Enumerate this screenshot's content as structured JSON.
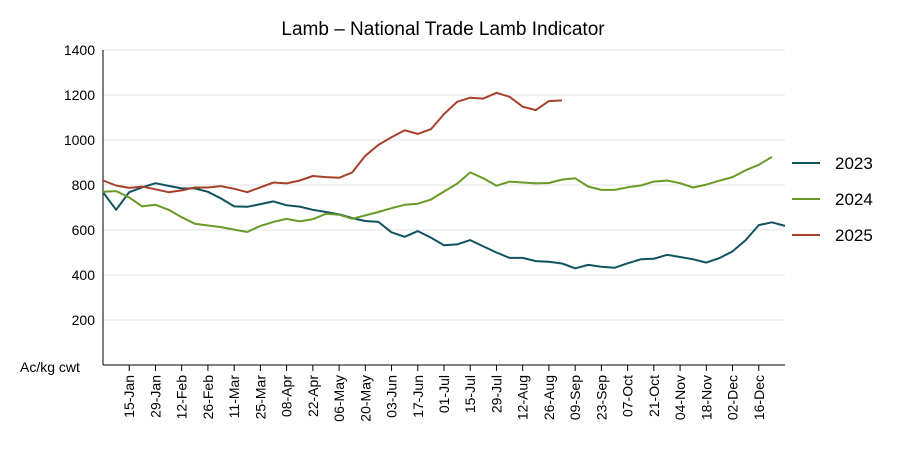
{
  "chart_data": {
    "type": "line",
    "title": "Lamb – National Trade Lamb Indicator",
    "ylabel": "Ac/kg cwt",
    "xlabel": "",
    "ylim": [
      0,
      1400
    ],
    "yticks": [
      200,
      400,
      600,
      800,
      1000,
      1200,
      1400
    ],
    "grid": "horizontal",
    "legend": "right",
    "x_tick_labels": [
      "15-Jan",
      "29-Jan",
      "12-Feb",
      "26-Feb",
      "11-Mar",
      "25-Mar",
      "08-Apr",
      "22-Apr",
      "06-May",
      "20-May",
      "03-Jun",
      "17-Jun",
      "01-Jul",
      "15-Jul",
      "29-Jul",
      "12-Aug",
      "26-Aug",
      "09-Sep",
      "23-Sep",
      "07-Oct",
      "21-Oct",
      "04-Nov",
      "18-Nov",
      "02-Dec",
      "16-Dec"
    ],
    "x_start": "01-Jan",
    "x_step_days": 7,
    "series": [
      {
        "name": "2023",
        "color": "#10525e",
        "values": [
          768,
          690,
          768,
          790,
          808,
          796,
          785,
          785,
          770,
          740,
          705,
          703,
          715,
          727,
          710,
          704,
          690,
          680,
          670,
          653,
          640,
          636,
          590,
          570,
          595,
          566,
          532,
          536,
          555,
          527,
          500,
          476,
          476,
          462,
          459,
          451,
          430,
          445,
          437,
          432,
          452,
          470,
          472,
          490,
          480,
          470,
          455,
          475,
          505,
          555,
          622,
          634,
          618
        ]
      },
      {
        "name": "2024",
        "color": "#6a9a26",
        "values": [
          770,
          773,
          745,
          705,
          712,
          690,
          657,
          628,
          620,
          613,
          602,
          591,
          618,
          636,
          650,
          638,
          648,
          672,
          668,
          650,
          665,
          680,
          697,
          712,
          717,
          735,
          771,
          806,
          856,
          830,
          797,
          815,
          811,
          807,
          809,
          824,
          830,
          793,
          778,
          778,
          790,
          798,
          815,
          820,
          808,
          789,
          802,
          819,
          835,
          866,
          890,
          925
        ]
      },
      {
        "name": "2025",
        "color": "#a8412a",
        "values": [
          820,
          798,
          787,
          793,
          781,
          768,
          776,
          789,
          789,
          795,
          783,
          768,
          790,
          811,
          807,
          820,
          840,
          835,
          832,
          856,
          930,
          978,
          1012,
          1043,
          1027,
          1048,
          1115,
          1170,
          1188,
          1184,
          1210,
          1192,
          1148,
          1133,
          1173,
          1176
        ]
      }
    ]
  }
}
